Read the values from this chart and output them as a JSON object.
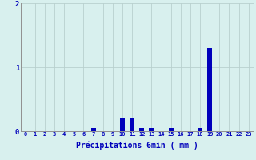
{
  "xlabel": "Précipitations 6min ( mm )",
  "hours": [
    0,
    1,
    2,
    3,
    4,
    5,
    6,
    7,
    8,
    9,
    10,
    11,
    12,
    13,
    14,
    15,
    16,
    17,
    18,
    19,
    20,
    21,
    22,
    23
  ],
  "values": [
    0,
    0,
    0,
    0,
    0,
    0,
    0,
    0.05,
    0,
    0,
    0.2,
    0.2,
    0.05,
    0.05,
    0,
    0.05,
    0,
    0,
    0.05,
    1.3,
    0,
    0,
    0,
    0
  ],
  "bar_color": "#0000bb",
  "background_color": "#d8f0ee",
  "grid_color": "#b8d0ce",
  "text_color": "#0000bb",
  "ylim": [
    0,
    2
  ],
  "yticks": [
    0,
    1,
    2
  ],
  "bar_width": 0.5
}
